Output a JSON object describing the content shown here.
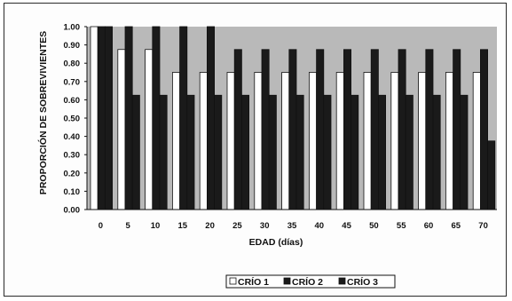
{
  "chart_data": {
    "type": "bar",
    "categories": [
      "0",
      "5",
      "10",
      "15",
      "20",
      "25",
      "30",
      "35",
      "40",
      "45",
      "50",
      "55",
      "60",
      "65",
      "70"
    ],
    "series": [
      {
        "name": "CRÍO 1",
        "values": [
          1.0,
          0.875,
          0.875,
          0.75,
          0.75,
          0.75,
          0.75,
          0.75,
          0.75,
          0.75,
          0.75,
          0.75,
          0.75,
          0.75,
          0.75
        ],
        "color": "#ffffff"
      },
      {
        "name": "CRÍO 2",
        "values": [
          1.0,
          1.0,
          1.0,
          1.0,
          1.0,
          0.875,
          0.875,
          0.875,
          0.875,
          0.875,
          0.875,
          0.875,
          0.875,
          0.875,
          0.875
        ],
        "color": "#1a1a1a"
      },
      {
        "name": "CRÍO 3",
        "values": [
          1.0,
          0.625,
          0.625,
          0.625,
          0.625,
          0.625,
          0.625,
          0.625,
          0.625,
          0.625,
          0.625,
          0.625,
          0.625,
          0.625,
          0.375
        ],
        "color": "#1a1a1a"
      }
    ],
    "xlabel": "EDAD (días)",
    "ylabel": "PROPORCIÓN DE SOBREVIVIENTES",
    "ylim": [
      0,
      1
    ],
    "yticks": [
      "0.00",
      "0.10",
      "0.20",
      "0.30",
      "0.40",
      "0.50",
      "0.60",
      "0.70",
      "0.80",
      "0.90",
      "1.00"
    ],
    "grid": false,
    "plot_background": "#b9b9b9",
    "legend_position": "bottom-center"
  }
}
